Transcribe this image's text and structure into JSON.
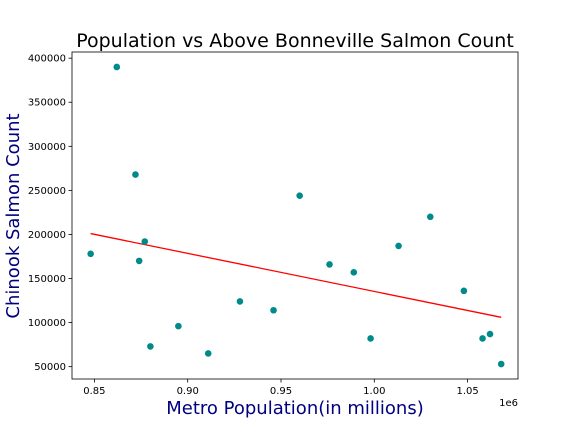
{
  "chart_data": {
    "type": "scatter",
    "title": "Population vs Above Bonneville Salmon Count",
    "xlabel": "Metro Population(in millions)",
    "ylabel": "Chinook Salmon Count",
    "x_offset_text": "1e6",
    "label_color": "#000080",
    "point_color": "#008B8B",
    "trend_color": "#FF0000",
    "xlim": [
      0.838,
      1.077
    ],
    "ylim": [
      36000,
      407000
    ],
    "x_ticks": [
      0.85,
      0.9,
      0.95,
      1.0,
      1.05
    ],
    "x_tick_labels": [
      "0.85",
      "0.90",
      "0.95",
      "1.00",
      "1.05"
    ],
    "y_ticks": [
      50000,
      100000,
      150000,
      200000,
      250000,
      300000,
      350000,
      400000
    ],
    "y_tick_labels": [
      "50000",
      "100000",
      "150000",
      "200000",
      "250000",
      "300000",
      "350000",
      "400000"
    ],
    "grid": false,
    "points": [
      {
        "x": 0.848,
        "y": 178000
      },
      {
        "x": 0.862,
        "y": 390000
      },
      {
        "x": 0.872,
        "y": 268000
      },
      {
        "x": 0.874,
        "y": 170000
      },
      {
        "x": 0.877,
        "y": 192000
      },
      {
        "x": 0.88,
        "y": 73000
      },
      {
        "x": 0.895,
        "y": 96000
      },
      {
        "x": 0.911,
        "y": 65000
      },
      {
        "x": 0.928,
        "y": 124000
      },
      {
        "x": 0.946,
        "y": 114000
      },
      {
        "x": 0.96,
        "y": 244000
      },
      {
        "x": 0.976,
        "y": 166000
      },
      {
        "x": 0.989,
        "y": 157000
      },
      {
        "x": 0.998,
        "y": 82000
      },
      {
        "x": 1.013,
        "y": 187000
      },
      {
        "x": 1.03,
        "y": 220000
      },
      {
        "x": 1.048,
        "y": 136000
      },
      {
        "x": 1.058,
        "y": 82000
      },
      {
        "x": 1.062,
        "y": 87000
      },
      {
        "x": 1.068,
        "y": 53000
      }
    ],
    "trendline": [
      {
        "x": 0.848,
        "y": 201000
      },
      {
        "x": 1.068,
        "y": 106000
      }
    ]
  }
}
